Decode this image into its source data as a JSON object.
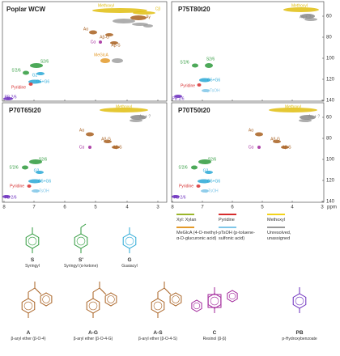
{
  "panels": [
    {
      "title": "Poplar WCW",
      "peaks": [
        {
          "label": "Methoxyl",
          "color": "#e0be10"
        },
        {
          "label": "Cβ",
          "color": "#e0be10"
        },
        {
          "label": "Aγ",
          "color": "#a86020"
        },
        {
          "label": "Aα",
          "color": "#a86020"
        },
        {
          "label": "Aβ-G",
          "color": "#a86020"
        },
        {
          "label": "Aβ-S",
          "color": "#a86020"
        },
        {
          "label": "Cα",
          "color": "#a0249a"
        },
        {
          "label": "MeGlcA",
          "color": "#e39a2a"
        },
        {
          "label": "S2/6",
          "color": "#2e9a3c"
        },
        {
          "label": "S'2/6",
          "color": "#2e9a3c"
        },
        {
          "label": "G2",
          "color": "#29a8d6"
        },
        {
          "label": "G5+G6",
          "color": "#29a8d6"
        },
        {
          "label": "Pyridine",
          "color": "#d62d2d"
        },
        {
          "label": "PB 2/6",
          "color": "#6a2bbd"
        }
      ]
    },
    {
      "title": "P75T80t20",
      "peaks": [
        {
          "label": "Methoxyl",
          "color": "#e0be10"
        },
        {
          "label": "Aγ + ?",
          "color": "#888888"
        },
        {
          "label": "S'2/6",
          "color": "#2e9a3c"
        },
        {
          "label": "S2/6",
          "color": "#2e9a3c"
        },
        {
          "label": "G5+G6",
          "color": "#29a8d6"
        },
        {
          "label": "Pyridine",
          "color": "#d62d2d"
        },
        {
          "label": "pTsOH",
          "color": "#7fc6e8"
        },
        {
          "label": "PB 2/6",
          "color": "#6a2bbd"
        }
      ]
    },
    {
      "title": "P70T65t20",
      "peaks": [
        {
          "label": "Methoxyl",
          "color": "#e0be10"
        },
        {
          "label": "Aγ + ?",
          "color": "#888888"
        },
        {
          "label": "Aα",
          "color": "#a86020"
        },
        {
          "label": "Aβ-G",
          "color": "#a86020"
        },
        {
          "label": "Aβ-S",
          "color": "#a86020"
        },
        {
          "label": "Cα",
          "color": "#a0249a"
        },
        {
          "label": "S2/6",
          "color": "#2e9a3c"
        },
        {
          "label": "S'2/6",
          "color": "#2e9a3c"
        },
        {
          "label": "G2",
          "color": "#29a8d6"
        },
        {
          "label": "G5+G6",
          "color": "#29a8d6"
        },
        {
          "label": "Pyridine",
          "color": "#d62d2d"
        },
        {
          "label": "pTsOH",
          "color": "#7fc6e8"
        },
        {
          "label": "PB 2/6",
          "color": "#6a2bbd"
        }
      ]
    },
    {
      "title": "P70T50t20",
      "peaks": [
        {
          "label": "Methoxyl",
          "color": "#e0be10"
        },
        {
          "label": "Aγ + ?",
          "color": "#888888"
        },
        {
          "label": "Aα",
          "color": "#a86020"
        },
        {
          "label": "Aβ-G",
          "color": "#a86020"
        },
        {
          "label": "Aβ-S",
          "color": "#a86020"
        },
        {
          "label": "Cα",
          "color": "#a0249a"
        },
        {
          "label": "S2/6",
          "color": "#2e9a3c"
        },
        {
          "label": "S'2/6",
          "color": "#2e9a3c"
        },
        {
          "label": "G2",
          "color": "#29a8d6"
        },
        {
          "label": "G5+G6",
          "color": "#29a8d6"
        },
        {
          "label": "Pyridine",
          "color": "#d62d2d"
        },
        {
          "label": "pTsOH",
          "color": "#7fc6e8"
        },
        {
          "label": "PB 2/6",
          "color": "#6a2bbd"
        }
      ]
    }
  ],
  "axes": {
    "x_ticks": [
      "8",
      "7",
      "6",
      "5",
      "4",
      "3"
    ],
    "y_ticks": [
      "60",
      "80",
      "100",
      "120",
      "140"
    ],
    "unit": "ppm"
  },
  "legend": [
    {
      "label": "Xyl: Xylan",
      "color": "#9ab52a"
    },
    {
      "label": "Pyridine",
      "color": "#d62d2d"
    },
    {
      "label": "Methoxyl",
      "color": "#f2d21a"
    },
    {
      "label": "MeGlcA (4-O-methyl-α-D-glucuronic acid)",
      "color": "#e39a2a"
    },
    {
      "label": "pTsOH (p-toluene-sulfonic acid)",
      "color": "#7fc6e8"
    },
    {
      "label": "Unresolved, unassigned",
      "color": "#999999"
    }
  ],
  "structures": [
    {
      "letter": "S",
      "name": "Syringyl",
      "color": "#2e9a3c"
    },
    {
      "letter": "S'",
      "name": "Syringyl (α-ketone)",
      "color": "#2e9a3c"
    },
    {
      "letter": "G",
      "name": "Guaiacyl",
      "color": "#29a8d6"
    },
    {
      "letter": "A",
      "name": "β-aryl ether (β-O-4)",
      "color": "#a86020"
    },
    {
      "letter": "A-G",
      "name": "β-aryl ether (β-O-4-G)",
      "color": "#a86020"
    },
    {
      "letter": "A-S",
      "name": "β-aryl ether (β-O-4-S)",
      "color": "#a86020"
    },
    {
      "letter": "C",
      "name": "Resinol (β-β)",
      "color": "#a0249a"
    },
    {
      "letter": "PB",
      "name": "p-Hydroxybenzoate",
      "color": "#6a2bbd"
    }
  ]
}
